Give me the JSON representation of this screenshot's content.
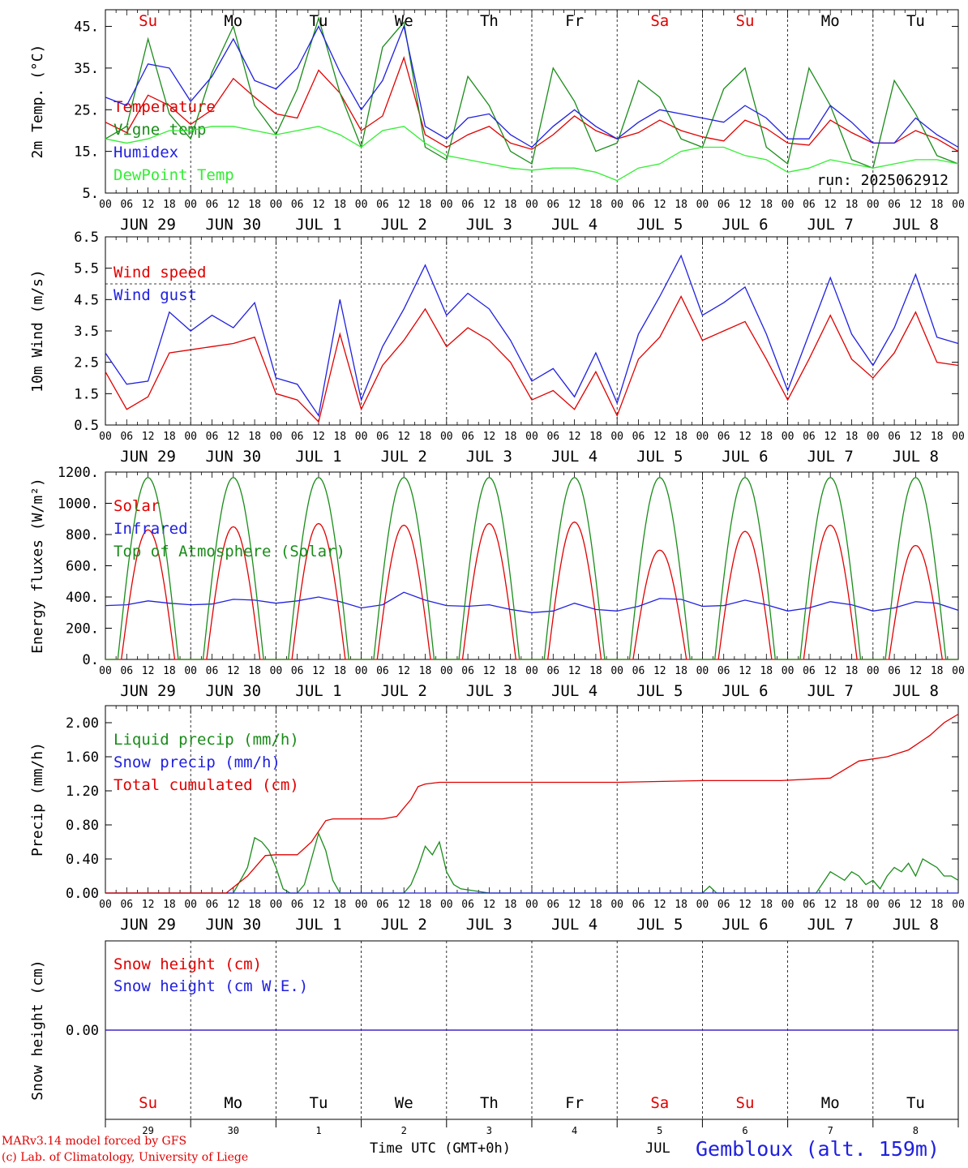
{
  "chart_data": [
    {
      "type": "line",
      "ylabel": "2m Temp. (°C)",
      "ylim": [
        5,
        49
      ],
      "yticks": [
        "45.",
        "35.",
        "25.",
        "15.",
        "5."
      ],
      "ytick_values": [
        45,
        35,
        25,
        15,
        5
      ],
      "run_label": "run: 2025062912",
      "hour_labels": [
        "00",
        "06",
        "12",
        "18"
      ],
      "date_labels": [
        "JUN 29",
        "JUN 30",
        "JUL  1",
        "JUL  2",
        "JUL  3",
        "JUL  4",
        "JUL  5",
        "JUL  6",
        "JUL  7",
        "JUL  8"
      ],
      "weekday_labels": [
        "Su",
        "Mo",
        "Tu",
        "We",
        "Th",
        "Fr",
        "Sa",
        "Su",
        "Mo",
        "Tu"
      ],
      "weekday_colors": [
        "#e00000",
        "#000000",
        "#000000",
        "#000000",
        "#000000",
        "#000000",
        "#e00000",
        "#e00000",
        "#000000",
        "#000000"
      ],
      "series": [
        {
          "name": "Temperature",
          "color": "#e00000",
          "x_hours": [
            0,
            6,
            12,
            18,
            24,
            30,
            36,
            42,
            48,
            54,
            60,
            66,
            72,
            78,
            84,
            90,
            96,
            102,
            108,
            114,
            120,
            126,
            132,
            138,
            144,
            150,
            156,
            162,
            168,
            174,
            180,
            186,
            192,
            198,
            204,
            210,
            216,
            222,
            228,
            234,
            240
          ],
          "values": [
            22,
            19.5,
            28.5,
            26,
            21.5,
            25,
            32.5,
            28,
            24,
            23,
            34.5,
            29,
            20,
            23.5,
            37.5,
            19,
            16,
            19,
            21,
            17,
            15.5,
            19,
            23.5,
            20,
            18,
            19.5,
            22.5,
            20,
            18.5,
            17.5,
            22.5,
            20.5,
            17,
            16.5,
            22.5,
            19.5,
            17,
            17,
            20,
            18,
            15
          ]
        },
        {
          "name": "Vigne temp",
          "color": "#1a8c1a",
          "x_hours": [
            0,
            6,
            12,
            18,
            24,
            30,
            36,
            42,
            48,
            54,
            60,
            66,
            72,
            78,
            84,
            90,
            96,
            102,
            108,
            114,
            120,
            126,
            132,
            138,
            144,
            150,
            156,
            162,
            168,
            174,
            180,
            186,
            192,
            198,
            204,
            210,
            216,
            222,
            228,
            234,
            240
          ],
          "values": [
            18,
            21,
            42,
            24,
            18,
            34,
            45,
            26,
            19,
            30,
            47,
            29,
            16,
            40,
            46,
            16,
            13,
            33,
            26,
            15,
            12,
            35,
            27,
            15,
            17,
            32,
            28,
            18,
            16,
            30,
            35,
            16,
            12,
            35,
            26,
            13,
            11,
            32,
            24,
            14,
            12
          ]
        },
        {
          "name": "Humidex",
          "color": "#2020e0",
          "x_hours": [
            0,
            6,
            12,
            18,
            24,
            30,
            36,
            42,
            48,
            54,
            60,
            66,
            72,
            78,
            84,
            90,
            96,
            102,
            108,
            114,
            120,
            126,
            132,
            138,
            144,
            150,
            156,
            162,
            168,
            174,
            180,
            186,
            192,
            198,
            204,
            210,
            216,
            222,
            228,
            234,
            240
          ],
          "values": [
            28,
            26,
            36,
            35,
            27,
            33,
            42,
            32,
            30,
            35,
            45,
            34,
            25,
            32,
            45,
            21,
            18,
            23,
            24,
            19,
            16,
            21,
            25,
            21,
            18,
            22,
            25,
            24,
            23,
            22,
            26,
            23,
            18,
            18,
            26,
            22,
            17,
            17,
            23,
            19,
            16
          ]
        },
        {
          "name": "DewPoint Temp",
          "color": "#33ee33",
          "x_hours": [
            0,
            6,
            12,
            18,
            24,
            30,
            36,
            42,
            48,
            54,
            60,
            66,
            72,
            78,
            84,
            90,
            96,
            102,
            108,
            114,
            120,
            126,
            132,
            138,
            144,
            150,
            156,
            162,
            168,
            174,
            180,
            186,
            192,
            198,
            204,
            210,
            216,
            222,
            228,
            234,
            240
          ],
          "values": [
            18,
            17,
            18,
            20,
            20,
            21,
            21,
            20,
            19,
            20,
            21,
            19,
            16,
            20,
            21,
            17,
            14,
            13,
            12,
            11,
            10.5,
            11,
            11,
            10,
            8,
            11,
            12,
            15,
            16,
            16,
            14,
            13,
            10,
            11,
            13,
            12,
            11,
            12,
            13,
            13,
            12
          ]
        }
      ]
    },
    {
      "type": "line",
      "ylabel": "10m Wind (m/s)",
      "ylim": [
        0.5,
        6.5
      ],
      "yticks": [
        "6.5",
        "5.5",
        "4.5",
        "3.5",
        "2.5",
        "1.5",
        "0.5"
      ],
      "ytick_values": [
        6.5,
        5.5,
        4.5,
        3.5,
        2.5,
        1.5,
        0.5
      ],
      "reference_line": 5.0,
      "series": [
        {
          "name": "Wind speed",
          "color": "#e00000",
          "x_hours": [
            0,
            6,
            12,
            18,
            24,
            30,
            36,
            42,
            48,
            54,
            60,
            66,
            72,
            78,
            84,
            90,
            96,
            102,
            108,
            114,
            120,
            126,
            132,
            138,
            144,
            150,
            156,
            162,
            168,
            174,
            180,
            186,
            192,
            198,
            204,
            210,
            216,
            222,
            228,
            234,
            240
          ],
          "values": [
            2.2,
            1.0,
            1.4,
            2.8,
            2.9,
            3.0,
            3.1,
            3.3,
            1.5,
            1.3,
            0.6,
            3.4,
            1.0,
            2.4,
            3.2,
            4.2,
            3.0,
            3.6,
            3.2,
            2.5,
            1.3,
            1.6,
            1.0,
            2.2,
            0.8,
            2.6,
            3.3,
            4.6,
            3.2,
            3.5,
            3.8,
            2.6,
            1.3,
            2.6,
            4.0,
            2.6,
            2.0,
            2.8,
            4.1,
            2.5,
            2.4
          ]
        },
        {
          "name": "Wind gust",
          "color": "#2020e0",
          "x_hours": [
            0,
            6,
            12,
            18,
            24,
            30,
            36,
            42,
            48,
            54,
            60,
            66,
            72,
            78,
            84,
            90,
            96,
            102,
            108,
            114,
            120,
            126,
            132,
            138,
            144,
            150,
            156,
            162,
            168,
            174,
            180,
            186,
            192,
            198,
            204,
            210,
            216,
            222,
            228,
            234,
            240
          ],
          "values": [
            2.8,
            1.8,
            1.9,
            4.1,
            3.5,
            4.0,
            3.6,
            4.4,
            2.0,
            1.8,
            0.8,
            4.5,
            1.3,
            3.0,
            4.2,
            5.6,
            4.0,
            4.7,
            4.2,
            3.2,
            1.9,
            2.3,
            1.4,
            2.8,
            1.2,
            3.4,
            4.6,
            5.9,
            4.0,
            4.4,
            4.9,
            3.4,
            1.6,
            3.4,
            5.2,
            3.4,
            2.4,
            3.6,
            5.3,
            3.3,
            3.1
          ]
        }
      ]
    },
    {
      "type": "line",
      "ylabel": "Energy fluxes (W/m²)",
      "ylim": [
        0,
        1200
      ],
      "yticks": [
        "1200.",
        "1000.",
        "800.",
        "600.",
        "400.",
        "200.",
        "0."
      ],
      "ytick_values": [
        1200,
        1000,
        800,
        600,
        400,
        200,
        0
      ],
      "series": [
        {
          "name": "Solar",
          "color": "#e00000",
          "daily_peaks": [
            830,
            850,
            870,
            860,
            870,
            880,
            700,
            820,
            860,
            730
          ]
        },
        {
          "name": "Infrared",
          "color": "#2020e0",
          "x_hours": [
            0,
            6,
            12,
            18,
            24,
            30,
            36,
            42,
            48,
            54,
            60,
            66,
            72,
            78,
            84,
            90,
            96,
            102,
            108,
            114,
            120,
            126,
            132,
            138,
            144,
            150,
            156,
            162,
            168,
            174,
            180,
            186,
            192,
            198,
            204,
            210,
            216,
            222,
            228,
            234,
            240
          ],
          "values": [
            345,
            350,
            375,
            360,
            350,
            355,
            385,
            380,
            360,
            375,
            400,
            370,
            330,
            350,
            430,
            380,
            345,
            340,
            350,
            320,
            300,
            310,
            360,
            320,
            310,
            340,
            390,
            385,
            340,
            345,
            380,
            350,
            310,
            330,
            370,
            350,
            310,
            330,
            370,
            360,
            315
          ]
        },
        {
          "name": "Top of Atmosphere (Solar)",
          "color": "#1a8c1a",
          "daily_peak": 1165
        }
      ]
    },
    {
      "type": "line",
      "ylabel": "Precip (mm/h)",
      "ylim": [
        0,
        2.2
      ],
      "yticks": [
        "2.00",
        "1.60",
        "1.20",
        "0.80",
        "0.40",
        "0.00"
      ],
      "ytick_values": [
        2.0,
        1.6,
        1.2,
        0.8,
        0.4,
        0.0
      ],
      "series": [
        {
          "name": "Liquid precip (mm/h)",
          "color": "#1a8c1a",
          "x_hours": [
            0,
            24,
            36,
            38,
            40,
            42,
            44,
            46,
            48,
            50,
            52,
            54,
            56,
            58,
            60,
            62,
            64,
            66,
            70,
            72,
            84,
            86,
            88,
            90,
            92,
            94,
            96,
            98,
            100,
            108,
            168,
            170,
            172,
            200,
            204,
            206,
            208,
            210,
            212,
            214,
            216,
            218,
            220,
            222,
            224,
            226,
            228,
            230,
            232,
            234,
            236,
            238,
            240
          ],
          "values": [
            0,
            0,
            0,
            0.15,
            0.3,
            0.65,
            0.6,
            0.5,
            0.3,
            0.05,
            0,
            0,
            0.1,
            0.4,
            0.7,
            0.5,
            0.15,
            0,
            0,
            0,
            0,
            0.1,
            0.3,
            0.55,
            0.45,
            0.6,
            0.25,
            0.1,
            0.05,
            0,
            0,
            0.08,
            0,
            0,
            0.25,
            0.2,
            0.15,
            0.25,
            0.2,
            0.1,
            0.15,
            0.05,
            0.2,
            0.3,
            0.25,
            0.35,
            0.2,
            0.4,
            0.35,
            0.3,
            0.2,
            0.2,
            0.15
          ]
        },
        {
          "name": "Snow precip (mm/h)",
          "color": "#2020e0",
          "x_hours": [
            0,
            240
          ],
          "values": [
            0,
            0
          ]
        },
        {
          "name": "Total cumulated (cm)",
          "color": "#e00000",
          "x_hours": [
            0,
            34,
            40,
            45,
            48,
            54,
            58,
            62,
            64,
            68,
            78,
            82,
            86,
            88,
            90,
            94,
            96,
            102,
            120,
            144,
            168,
            190,
            204,
            208,
            212,
            220,
            226,
            232,
            236,
            240
          ],
          "values": [
            0,
            0,
            0.2,
            0.44,
            0.45,
            0.45,
            0.6,
            0.85,
            0.87,
            0.87,
            0.87,
            0.9,
            1.1,
            1.25,
            1.28,
            1.3,
            1.3,
            1.3,
            1.3,
            1.3,
            1.32,
            1.32,
            1.35,
            1.45,
            1.55,
            1.6,
            1.68,
            1.85,
            2.0,
            2.1
          ]
        }
      ]
    },
    {
      "type": "line",
      "ylabel": "Snow height (cm)",
      "ylim": [
        -1,
        1
      ],
      "yticks": [
        "0.00"
      ],
      "ytick_values": [
        0
      ],
      "series": [
        {
          "name": "Snow height (cm)",
          "color": "#e00000",
          "x_hours": [
            0,
            240
          ],
          "values": [
            0,
            0
          ]
        },
        {
          "name": "Snow height (cm W.E.)",
          "color": "#2020e0",
          "x_hours": [
            0,
            240
          ],
          "values": [
            0,
            0
          ]
        }
      ]
    }
  ],
  "bottom_axis": {
    "weekday_labels": [
      "Su",
      "Mo",
      "Tu",
      "We",
      "Th",
      "Fr",
      "Sa",
      "Su",
      "Mo",
      "Tu"
    ],
    "weekday_colors": [
      "#e00000",
      "#000000",
      "#000000",
      "#000000",
      "#000000",
      "#000000",
      "#e00000",
      "#e00000",
      "#000000",
      "#000000"
    ],
    "day_numbers": [
      "29",
      "30",
      "1",
      "2",
      "3",
      "4",
      "5",
      "6",
      "7",
      "8"
    ],
    "month_label": "JUL"
  },
  "footer": {
    "credit_line1": "MARv3.14 model forced by GFS",
    "credit_line2": "(c) Lab. of Climatology, University of Liege",
    "axis_title": "Time UTC (GMT+0h)",
    "month": "JUL",
    "station": "Gembloux (alt. 159m)"
  }
}
